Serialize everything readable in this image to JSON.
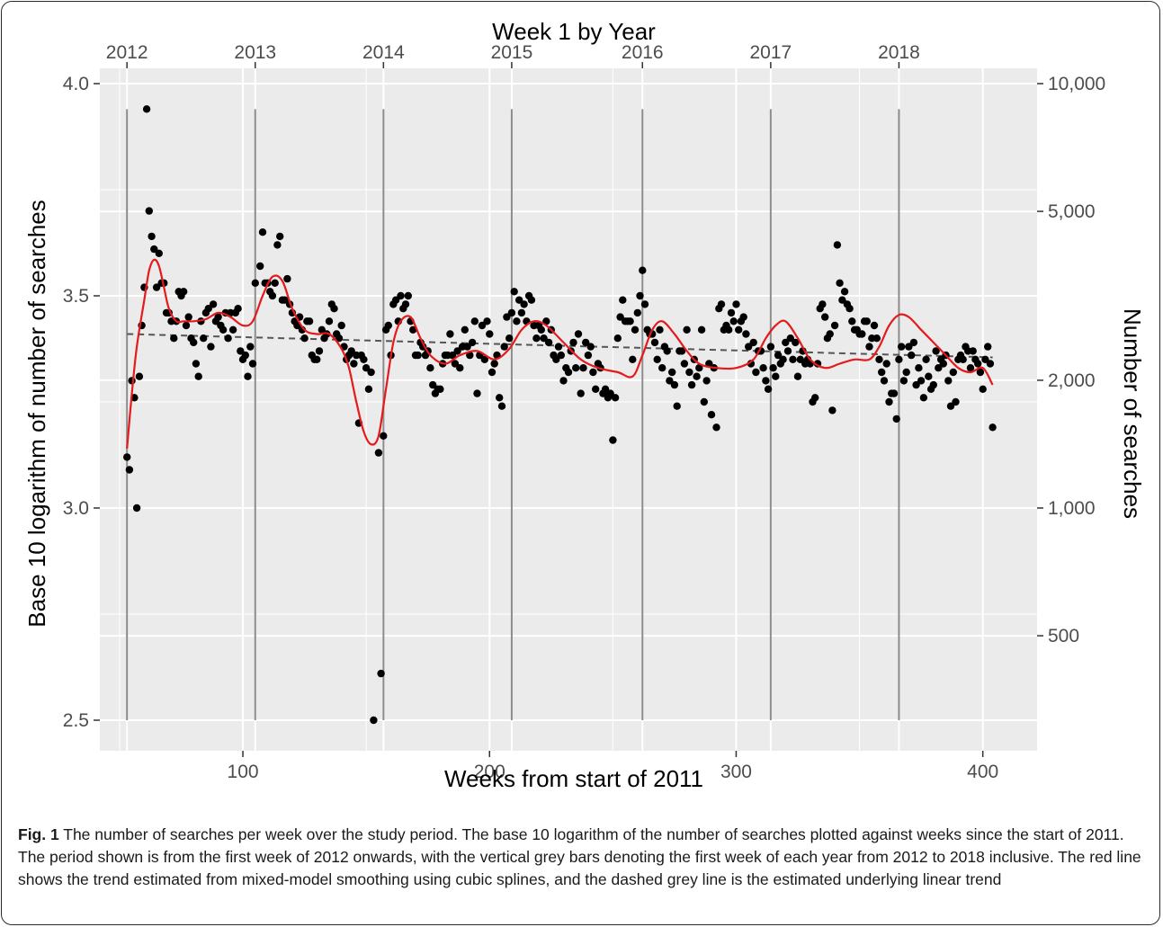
{
  "figure": {
    "label": "Fig. 1",
    "caption": "The number of searches per week over the study period. The base 10 logarithm of the number of searches plotted against weeks since the start of 2011. The period shown is from the first week of 2012 onwards, with the vertical grey bars denoting the first week of each year from 2012 to 2018 inclusive. The red line shows the trend estimated from mixed-model smoothing using cubic splines, and the dashed grey line is the estimated underlying linear trend"
  },
  "chart_data": {
    "type": "scatter",
    "title": "",
    "xlabel": "Weeks from start of 2011",
    "ylabel": "Base 10 logarithm of number of searches",
    "top_axis_label": "Week 1 by Year",
    "right_axis_label": "Number of searches",
    "xlim": [
      42,
      422
    ],
    "ylim": [
      2.43,
      4.0
    ],
    "x_ticks": [
      100,
      200,
      300,
      400
    ],
    "y_ticks": [
      2.5,
      3.0,
      3.5,
      4.0
    ],
    "y_tick_labels": [
      "2.5",
      "3.0",
      "3.5",
      "4.0"
    ],
    "right_ticks": [
      {
        "value": 500,
        "label": "500"
      },
      {
        "value": 1000,
        "label": "1,000"
      },
      {
        "value": 2000,
        "label": "2,000"
      },
      {
        "value": 5000,
        "label": "5,000"
      },
      {
        "value": 10000,
        "label": "10,000"
      }
    ],
    "year_marks": [
      {
        "week": 53,
        "label": "2012"
      },
      {
        "week": 105,
        "label": "2013"
      },
      {
        "week": 157,
        "label": "2014"
      },
      {
        "week": 209,
        "label": "2015"
      },
      {
        "week": 262,
        "label": "2016"
      },
      {
        "week": 314,
        "label": "2017"
      },
      {
        "week": 366,
        "label": "2018"
      }
    ],
    "grid": true,
    "colors": {
      "panel": "#ebebeb",
      "grid": "#ffffff",
      "points": "#000000",
      "smooth": "#e41a1c",
      "trend": "#555555",
      "year_bars": "#8c8c8c"
    },
    "linear_trend": {
      "x": [
        53,
        404
      ],
      "y": [
        3.41,
        3.355
      ]
    },
    "smooth_series": {
      "x": [
        53,
        55,
        57,
        60,
        62,
        64,
        66,
        68,
        70,
        73,
        76,
        80,
        85,
        90,
        95,
        100,
        104,
        108,
        112,
        116,
        120,
        125,
        130,
        135,
        140,
        143,
        146,
        149,
        152,
        155,
        158,
        161,
        164,
        168,
        172,
        176,
        182,
        188,
        195,
        202,
        208,
        213,
        218,
        223,
        230,
        237,
        244,
        252,
        258,
        262,
        266,
        270,
        275,
        280,
        285,
        292,
        300,
        307,
        312,
        316,
        320,
        325,
        330,
        336,
        342,
        348,
        354,
        358,
        362,
        366,
        370,
        375,
        380,
        385,
        390,
        395,
        400,
        404
      ],
      "y": [
        3.14,
        3.27,
        3.38,
        3.49,
        3.56,
        3.585,
        3.57,
        3.52,
        3.47,
        3.44,
        3.44,
        3.44,
        3.445,
        3.46,
        3.45,
        3.43,
        3.44,
        3.5,
        3.545,
        3.535,
        3.47,
        3.42,
        3.41,
        3.41,
        3.375,
        3.33,
        3.25,
        3.18,
        3.15,
        3.17,
        3.28,
        3.39,
        3.44,
        3.45,
        3.4,
        3.36,
        3.34,
        3.36,
        3.37,
        3.35,
        3.375,
        3.42,
        3.44,
        3.43,
        3.39,
        3.35,
        3.33,
        3.32,
        3.31,
        3.36,
        3.42,
        3.44,
        3.41,
        3.37,
        3.34,
        3.33,
        3.33,
        3.35,
        3.4,
        3.43,
        3.44,
        3.4,
        3.35,
        3.33,
        3.34,
        3.35,
        3.35,
        3.38,
        3.43,
        3.455,
        3.45,
        3.42,
        3.39,
        3.36,
        3.33,
        3.32,
        3.33,
        3.29
      ]
    },
    "points": [
      [
        53,
        3.12
      ],
      [
        54,
        3.09
      ],
      [
        55,
        3.3
      ],
      [
        56,
        3.26
      ],
      [
        57,
        3.0
      ],
      [
        58,
        3.31
      ],
      [
        59,
        3.43
      ],
      [
        60,
        3.52
      ],
      [
        61,
        3.94
      ],
      [
        62,
        3.7
      ],
      [
        63,
        3.64
      ],
      [
        64,
        3.61
      ],
      [
        65,
        3.52
      ],
      [
        66,
        3.6
      ],
      [
        67,
        3.53
      ],
      [
        68,
        3.53
      ],
      [
        69,
        3.46
      ],
      [
        70,
        3.46
      ],
      [
        71,
        3.44
      ],
      [
        72,
        3.4
      ],
      [
        73,
        3.44
      ],
      [
        74,
        3.51
      ],
      [
        75,
        3.5
      ],
      [
        76,
        3.51
      ],
      [
        77,
        3.43
      ],
      [
        78,
        3.45
      ],
      [
        79,
        3.4
      ],
      [
        80,
        3.39
      ],
      [
        81,
        3.34
      ],
      [
        82,
        3.31
      ],
      [
        83,
        3.44
      ],
      [
        84,
        3.4
      ],
      [
        85,
        3.46
      ],
      [
        86,
        3.47
      ],
      [
        87,
        3.38
      ],
      [
        88,
        3.48
      ],
      [
        89,
        3.44
      ],
      [
        90,
        3.45
      ],
      [
        91,
        3.43
      ],
      [
        92,
        3.42
      ],
      [
        93,
        3.46
      ],
      [
        94,
        3.4
      ],
      [
        95,
        3.46
      ],
      [
        96,
        3.42
      ],
      [
        97,
        3.46
      ],
      [
        98,
        3.47
      ],
      [
        99,
        3.37
      ],
      [
        100,
        3.35
      ],
      [
        101,
        3.36
      ],
      [
        102,
        3.31
      ],
      [
        103,
        3.38
      ],
      [
        104,
        3.34
      ],
      [
        105,
        3.53
      ],
      [
        107,
        3.57
      ],
      [
        108,
        3.65
      ],
      [
        109,
        3.53
      ],
      [
        110,
        3.53
      ],
      [
        111,
        3.51
      ],
      [
        112,
        3.5
      ],
      [
        113,
        3.53
      ],
      [
        114,
        3.62
      ],
      [
        115,
        3.64
      ],
      [
        116,
        3.49
      ],
      [
        117,
        3.49
      ],
      [
        118,
        3.54
      ],
      [
        119,
        3.48
      ],
      [
        120,
        3.46
      ],
      [
        121,
        3.44
      ],
      [
        122,
        3.43
      ],
      [
        123,
        3.45
      ],
      [
        124,
        3.42
      ],
      [
        125,
        3.4
      ],
      [
        126,
        3.44
      ],
      [
        127,
        3.44
      ],
      [
        128,
        3.36
      ],
      [
        129,
        3.35
      ],
      [
        130,
        3.35
      ],
      [
        131,
        3.37
      ],
      [
        132,
        3.42
      ],
      [
        133,
        3.4
      ],
      [
        134,
        3.41
      ],
      [
        135,
        3.44
      ],
      [
        136,
        3.48
      ],
      [
        137,
        3.47
      ],
      [
        138,
        3.41
      ],
      [
        139,
        3.4
      ],
      [
        140,
        3.43
      ],
      [
        141,
        3.38
      ],
      [
        142,
        3.35
      ],
      [
        143,
        3.36
      ],
      [
        144,
        3.37
      ],
      [
        145,
        3.34
      ],
      [
        146,
        3.36
      ],
      [
        147,
        3.2
      ],
      [
        148,
        3.36
      ],
      [
        149,
        3.35
      ],
      [
        150,
        3.33
      ],
      [
        151,
        3.28
      ],
      [
        152,
        3.32
      ],
      [
        153,
        2.5
      ],
      [
        155,
        3.13
      ],
      [
        156,
        2.61
      ],
      [
        157,
        3.17
      ],
      [
        158,
        3.42
      ],
      [
        159,
        3.43
      ],
      [
        160,
        3.36
      ],
      [
        161,
        3.48
      ],
      [
        162,
        3.49
      ],
      [
        163,
        3.44
      ],
      [
        164,
        3.5
      ],
      [
        165,
        3.47
      ],
      [
        166,
        3.48
      ],
      [
        167,
        3.5
      ],
      [
        168,
        3.44
      ],
      [
        169,
        3.42
      ],
      [
        170,
        3.36
      ],
      [
        171,
        3.36
      ],
      [
        172,
        3.39
      ],
      [
        173,
        3.38
      ],
      [
        174,
        3.36
      ],
      [
        175,
        3.37
      ],
      [
        176,
        3.33
      ],
      [
        177,
        3.29
      ],
      [
        178,
        3.27
      ],
      [
        179,
        3.28
      ],
      [
        180,
        3.28
      ],
      [
        181,
        3.34
      ],
      [
        182,
        3.36
      ],
      [
        183,
        3.36
      ],
      [
        184,
        3.41
      ],
      [
        185,
        3.36
      ],
      [
        186,
        3.34
      ],
      [
        187,
        3.37
      ],
      [
        188,
        3.33
      ],
      [
        189,
        3.38
      ],
      [
        190,
        3.42
      ],
      [
        191,
        3.38
      ],
      [
        192,
        3.36
      ],
      [
        193,
        3.39
      ],
      [
        194,
        3.44
      ],
      [
        195,
        3.27
      ],
      [
        196,
        3.36
      ],
      [
        197,
        3.43
      ],
      [
        198,
        3.35
      ],
      [
        199,
        3.44
      ],
      [
        200,
        3.41
      ],
      [
        201,
        3.32
      ],
      [
        202,
        3.34
      ],
      [
        203,
        3.36
      ],
      [
        204,
        3.26
      ],
      [
        205,
        3.24
      ],
      [
        206,
        3.38
      ],
      [
        207,
        3.45
      ],
      [
        208,
        3.4
      ],
      [
        209,
        3.46
      ],
      [
        210,
        3.51
      ],
      [
        211,
        3.44
      ],
      [
        212,
        3.49
      ],
      [
        213,
        3.46
      ],
      [
        214,
        3.48
      ],
      [
        215,
        3.44
      ],
      [
        216,
        3.5
      ],
      [
        217,
        3.49
      ],
      [
        218,
        3.43
      ],
      [
        219,
        3.4
      ],
      [
        220,
        3.43
      ],
      [
        221,
        3.42
      ],
      [
        222,
        3.4
      ],
      [
        223,
        3.44
      ],
      [
        224,
        3.39
      ],
      [
        225,
        3.42
      ],
      [
        226,
        3.36
      ],
      [
        227,
        3.35
      ],
      [
        228,
        3.38
      ],
      [
        229,
        3.36
      ],
      [
        230,
        3.3
      ],
      [
        231,
        3.33
      ],
      [
        232,
        3.32
      ],
      [
        233,
        3.37
      ],
      [
        234,
        3.39
      ],
      [
        235,
        3.33
      ],
      [
        236,
        3.41
      ],
      [
        237,
        3.27
      ],
      [
        238,
        3.33
      ],
      [
        239,
        3.39
      ],
      [
        240,
        3.36
      ],
      [
        241,
        3.38
      ],
      [
        242,
        3.32
      ],
      [
        243,
        3.28
      ],
      [
        244,
        3.34
      ],
      [
        245,
        3.33
      ],
      [
        246,
        3.27
      ],
      [
        247,
        3.28
      ],
      [
        248,
        3.26
      ],
      [
        249,
        3.27
      ],
      [
        250,
        3.16
      ],
      [
        251,
        3.26
      ],
      [
        252,
        3.4
      ],
      [
        253,
        3.45
      ],
      [
        254,
        3.49
      ],
      [
        255,
        3.44
      ],
      [
        256,
        3.44
      ],
      [
        257,
        3.44
      ],
      [
        258,
        3.35
      ],
      [
        259,
        3.42
      ],
      [
        260,
        3.46
      ],
      [
        261,
        3.5
      ],
      [
        262,
        3.56
      ],
      [
        263,
        3.48
      ],
      [
        264,
        3.42
      ],
      [
        265,
        3.41
      ],
      [
        266,
        3.41
      ],
      [
        267,
        3.39
      ],
      [
        268,
        3.35
      ],
      [
        269,
        3.42
      ],
      [
        270,
        3.33
      ],
      [
        271,
        3.38
      ],
      [
        272,
        3.37
      ],
      [
        273,
        3.3
      ],
      [
        274,
        3.32
      ],
      [
        275,
        3.29
      ],
      [
        276,
        3.24
      ],
      [
        277,
        3.37
      ],
      [
        278,
        3.37
      ],
      [
        279,
        3.34
      ],
      [
        280,
        3.42
      ],
      [
        281,
        3.32
      ],
      [
        282,
        3.29
      ],
      [
        283,
        3.35
      ],
      [
        284,
        3.31
      ],
      [
        285,
        3.33
      ],
      [
        286,
        3.42
      ],
      [
        287,
        3.25
      ],
      [
        288,
        3.3
      ],
      [
        289,
        3.34
      ],
      [
        290,
        3.22
      ],
      [
        291,
        3.33
      ],
      [
        292,
        3.19
      ],
      [
        293,
        3.47
      ],
      [
        294,
        3.48
      ],
      [
        295,
        3.42
      ],
      [
        296,
        3.43
      ],
      [
        297,
        3.42
      ],
      [
        298,
        3.46
      ],
      [
        299,
        3.44
      ],
      [
        300,
        3.48
      ],
      [
        301,
        3.42
      ],
      [
        302,
        3.44
      ],
      [
        303,
        3.45
      ],
      [
        304,
        3.41
      ],
      [
        305,
        3.38
      ],
      [
        306,
        3.34
      ],
      [
        307,
        3.39
      ],
      [
        308,
        3.32
      ],
      [
        309,
        3.37
      ],
      [
        310,
        3.37
      ],
      [
        311,
        3.33
      ],
      [
        312,
        3.3
      ],
      [
        313,
        3.28
      ],
      [
        314,
        3.38
      ],
      [
        315,
        3.33
      ],
      [
        316,
        3.31
      ],
      [
        317,
        3.36
      ],
      [
        318,
        3.34
      ],
      [
        319,
        3.35
      ],
      [
        320,
        3.39
      ],
      [
        321,
        3.37
      ],
      [
        322,
        3.4
      ],
      [
        323,
        3.35
      ],
      [
        324,
        3.39
      ],
      [
        325,
        3.31
      ],
      [
        326,
        3.35
      ],
      [
        327,
        3.37
      ],
      [
        328,
        3.34
      ],
      [
        329,
        3.35
      ],
      [
        330,
        3.34
      ],
      [
        331,
        3.25
      ],
      [
        332,
        3.26
      ],
      [
        333,
        3.34
      ],
      [
        334,
        3.47
      ],
      [
        335,
        3.48
      ],
      [
        336,
        3.45
      ],
      [
        337,
        3.4
      ],
      [
        338,
        3.41
      ],
      [
        339,
        3.23
      ],
      [
        340,
        3.43
      ],
      [
        341,
        3.62
      ],
      [
        342,
        3.53
      ],
      [
        343,
        3.49
      ],
      [
        344,
        3.51
      ],
      [
        345,
        3.48
      ],
      [
        346,
        3.47
      ],
      [
        347,
        3.44
      ],
      [
        348,
        3.42
      ],
      [
        349,
        3.42
      ],
      [
        350,
        3.41
      ],
      [
        351,
        3.41
      ],
      [
        352,
        3.44
      ],
      [
        353,
        3.44
      ],
      [
        354,
        3.38
      ],
      [
        355,
        3.4
      ],
      [
        356,
        3.43
      ],
      [
        357,
        3.4
      ],
      [
        358,
        3.35
      ],
      [
        359,
        3.32
      ],
      [
        360,
        3.3
      ],
      [
        361,
        3.34
      ],
      [
        362,
        3.25
      ],
      [
        363,
        3.27
      ],
      [
        364,
        3.27
      ],
      [
        365,
        3.21
      ],
      [
        366,
        3.35
      ],
      [
        367,
        3.38
      ],
      [
        368,
        3.3
      ],
      [
        369,
        3.32
      ],
      [
        370,
        3.38
      ],
      [
        371,
        3.36
      ],
      [
        372,
        3.39
      ],
      [
        373,
        3.29
      ],
      [
        374,
        3.33
      ],
      [
        375,
        3.3
      ],
      [
        376,
        3.26
      ],
      [
        377,
        3.35
      ],
      [
        378,
        3.31
      ],
      [
        379,
        3.28
      ],
      [
        380,
        3.29
      ],
      [
        381,
        3.37
      ],
      [
        382,
        3.33
      ],
      [
        383,
        3.35
      ],
      [
        384,
        3.34
      ],
      [
        385,
        3.36
      ],
      [
        386,
        3.3
      ],
      [
        387,
        3.24
      ],
      [
        388,
        3.32
      ],
      [
        389,
        3.25
      ],
      [
        390,
        3.35
      ],
      [
        391,
        3.36
      ],
      [
        392,
        3.35
      ],
      [
        393,
        3.38
      ],
      [
        394,
        3.37
      ],
      [
        395,
        3.33
      ],
      [
        396,
        3.37
      ],
      [
        397,
        3.35
      ],
      [
        398,
        3.34
      ],
      [
        399,
        3.32
      ],
      [
        400,
        3.28
      ],
      [
        401,
        3.35
      ],
      [
        402,
        3.38
      ],
      [
        403,
        3.34
      ],
      [
        404,
        3.19
      ]
    ]
  }
}
